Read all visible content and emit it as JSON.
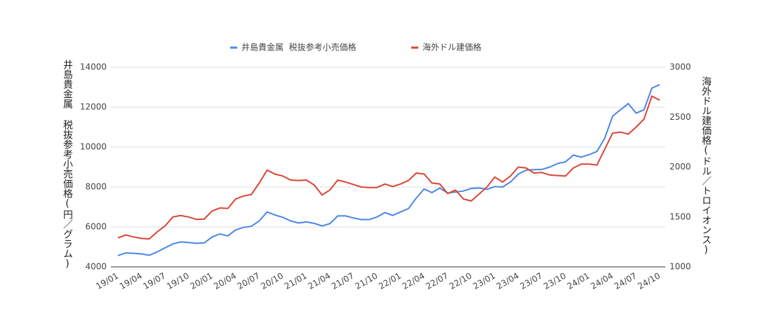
{
  "chart_data": {
    "type": "line",
    "categories": [
      "19/01",
      null,
      null,
      "19/04",
      null,
      null,
      "19/07",
      null,
      null,
      "19/10",
      null,
      null,
      "20/01",
      null,
      null,
      "20/04",
      null,
      null,
      "20/07",
      null,
      null,
      "20/10",
      null,
      null,
      "21/01",
      null,
      null,
      "21/04",
      null,
      null,
      "21/07",
      null,
      null,
      "21/10",
      null,
      null,
      "22/01",
      null,
      null,
      "22/04",
      null,
      null,
      "22/07",
      null,
      null,
      "22/10",
      null,
      null,
      "23/01",
      null,
      null,
      "23/04",
      null,
      null,
      "23/07",
      null,
      null,
      "23/10",
      null,
      null,
      "24/01",
      null,
      null,
      "24/04",
      null,
      null,
      "24/07",
      null,
      null,
      "24/10"
    ],
    "series": [
      {
        "name": "井島貴金属  税抜参考小売価格",
        "color": "#4a86e8",
        "axis": "y",
        "values": [
          4570,
          4700,
          4680,
          4650,
          4580,
          4750,
          4950,
          5150,
          5250,
          5220,
          5180,
          5200,
          5500,
          5650,
          5550,
          5850,
          5980,
          6030,
          6300,
          6750,
          6600,
          6480,
          6300,
          6200,
          6250,
          6180,
          6050,
          6170,
          6550,
          6550,
          6450,
          6370,
          6370,
          6500,
          6720,
          6580,
          6750,
          6920,
          7450,
          7900,
          7720,
          7950,
          7700,
          7750,
          7800,
          7930,
          7950,
          7880,
          8020,
          8000,
          8250,
          8650,
          8850,
          8870,
          8880,
          9000,
          9180,
          9260,
          9600,
          9500,
          9620,
          9780,
          10450,
          11550,
          11870,
          12180,
          11700,
          11870,
          12950,
          13130
        ]
      },
      {
        "name": "海外ドル建価格",
        "color": "#db4437",
        "axis": "y2",
        "values": [
          1290,
          1320,
          1300,
          1285,
          1280,
          1350,
          1410,
          1500,
          1515,
          1500,
          1475,
          1480,
          1560,
          1590,
          1585,
          1680,
          1710,
          1725,
          1840,
          1970,
          1930,
          1910,
          1870,
          1865,
          1870,
          1820,
          1720,
          1770,
          1870,
          1850,
          1825,
          1800,
          1795,
          1795,
          1830,
          1805,
          1830,
          1865,
          1940,
          1930,
          1840,
          1830,
          1735,
          1770,
          1680,
          1660,
          1730,
          1800,
          1900,
          1850,
          1910,
          2000,
          1990,
          1940,
          1945,
          1920,
          1915,
          1910,
          1990,
          2030,
          2030,
          2020,
          2180,
          2340,
          2350,
          2330,
          2400,
          2480,
          2710,
          2670
        ]
      }
    ],
    "y_label": "井島貴金属  税抜参考小売価格(円／グラム)",
    "y2_label": "海外ドル建価格(ドル／トロイオンス)",
    "ylim": [
      4000,
      14000
    ],
    "yticks": [
      4000,
      6000,
      8000,
      10000,
      12000,
      14000
    ],
    "y2lim": [
      1000,
      3000
    ],
    "y2ticks": [
      1000,
      1500,
      2000,
      2500,
      3000
    ],
    "grid": true,
    "legend": "top"
  }
}
